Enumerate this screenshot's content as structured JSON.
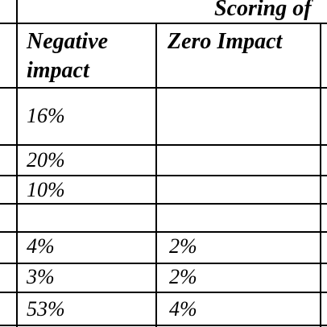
{
  "table": {
    "group_header": "Scoring of",
    "columns": [
      "Negative impact",
      "Zero Impact"
    ],
    "column_header_lines": [
      [
        "Negative",
        "impact"
      ],
      [
        "Zero Impact"
      ]
    ],
    "rows": [
      {
        "negative": "16%",
        "zero": ""
      },
      {
        "negative": "20%",
        "zero": ""
      },
      {
        "negative": "10%",
        "zero": ""
      },
      {
        "negative": "",
        "zero": ""
      },
      {
        "negative": "4%",
        "zero": "2%"
      },
      {
        "negative": "3%",
        "zero": "2%"
      },
      {
        "negative": "53%",
        "zero": "4%"
      }
    ]
  }
}
